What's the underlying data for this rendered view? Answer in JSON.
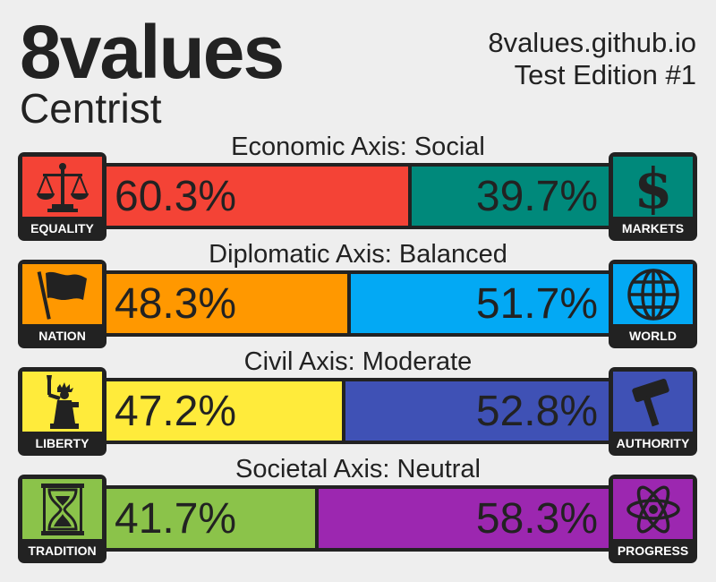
{
  "header": {
    "title": "8values",
    "ideology": "Centrist",
    "site": "8values.github.io",
    "edition": "Test Edition #1"
  },
  "axes": [
    {
      "label": "Economic Axis: Social",
      "left": {
        "name": "EQUALITY",
        "percent": "60.3%",
        "value": 60.3,
        "color": "#f44336",
        "icon": "scales-icon"
      },
      "right": {
        "name": "MARKETS",
        "percent": "39.7%",
        "value": 39.7,
        "color": "#00897b",
        "icon": "dollar-icon"
      }
    },
    {
      "label": "Diplomatic Axis: Balanced",
      "left": {
        "name": "NATION",
        "percent": "48.3%",
        "value": 48.3,
        "color": "#ff9800",
        "icon": "flag-icon"
      },
      "right": {
        "name": "WORLD",
        "percent": "51.7%",
        "value": 51.7,
        "color": "#03a9f4",
        "icon": "globe-icon"
      }
    },
    {
      "label": "Civil Axis: Moderate",
      "left": {
        "name": "LIBERTY",
        "percent": "47.2%",
        "value": 47.2,
        "color": "#ffeb3b",
        "icon": "statue-of-liberty-icon"
      },
      "right": {
        "name": "AUTHORITY",
        "percent": "52.8%",
        "value": 52.8,
        "color": "#3f51b5",
        "icon": "gavel-icon"
      }
    },
    {
      "label": "Societal Axis: Neutral",
      "left": {
        "name": "TRADITION",
        "percent": "41.7%",
        "value": 41.7,
        "color": "#8bc34a",
        "icon": "hourglass-icon"
      },
      "right": {
        "name": "PROGRESS",
        "percent": "58.3%",
        "value": 58.3,
        "color": "#9c27b0",
        "icon": "atom-icon"
      }
    }
  ]
}
